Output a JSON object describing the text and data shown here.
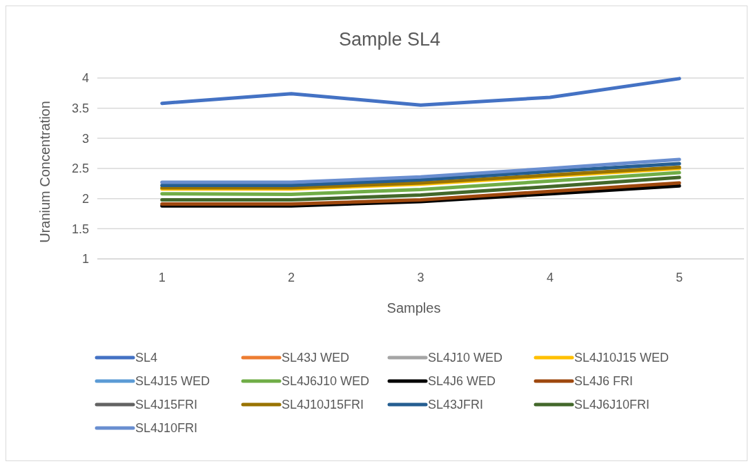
{
  "chart_data": {
    "type": "line",
    "title": "Sample SL4",
    "xlabel": "Samples",
    "ylabel": "Uranium Concentration",
    "categories": [
      "1",
      "2",
      "3",
      "4",
      "5"
    ],
    "ylim": [
      1,
      4
    ],
    "yticks": [
      1,
      1.5,
      2,
      2.5,
      3,
      3.5,
      4
    ],
    "grid": "y",
    "legend": "bottom",
    "series": [
      {
        "name": "SL4",
        "color": "#4472c4",
        "values": [
          3.58,
          3.74,
          3.55,
          3.68,
          3.99
        ]
      },
      {
        "name": "SL43J WED",
        "color": "#ed7d31",
        "values": [
          null,
          null,
          null,
          null,
          null
        ]
      },
      {
        "name": "SL4J10 WED",
        "color": "#a5a5a5",
        "values": [
          null,
          null,
          null,
          null,
          null
        ]
      },
      {
        "name": "SL4J10J15 WED",
        "color": "#ffc000",
        "values": [
          2.16,
          2.16,
          2.24,
          2.37,
          2.5
        ]
      },
      {
        "name": "SL4J15 WED",
        "color": "#5b9bd5",
        "values": [
          null,
          null,
          null,
          null,
          null
        ]
      },
      {
        "name": "SL4J6J10 WED",
        "color": "#70ad47",
        "values": [
          2.08,
          2.07,
          2.15,
          2.29,
          2.43
        ]
      },
      {
        "name": "SL4J6 WED",
        "color": "#000000",
        "values": [
          1.88,
          1.88,
          1.95,
          2.08,
          2.21
        ]
      },
      {
        "name": "SL4J6 FRI",
        "color": "#9e480e",
        "values": [
          1.91,
          1.91,
          1.98,
          2.12,
          2.26
        ]
      },
      {
        "name": "SL4J15FRI",
        "color": "#636363",
        "values": [
          null,
          null,
          null,
          null,
          null
        ]
      },
      {
        "name": "SL4J10J15FRI",
        "color": "#997300",
        "values": [
          2.18,
          2.18,
          2.26,
          2.39,
          2.52
        ]
      },
      {
        "name": "SL43JFRI",
        "color": "#255e91",
        "values": [
          2.22,
          2.22,
          2.31,
          2.45,
          2.58
        ]
      },
      {
        "name": "SL4J6J10FRI",
        "color": "#43682b",
        "values": [
          1.98,
          1.98,
          2.06,
          2.2,
          2.35
        ]
      },
      {
        "name": "SL4J10FRI",
        "color": "#698ed0",
        "values": [
          2.27,
          2.27,
          2.36,
          2.5,
          2.65
        ]
      }
    ]
  }
}
